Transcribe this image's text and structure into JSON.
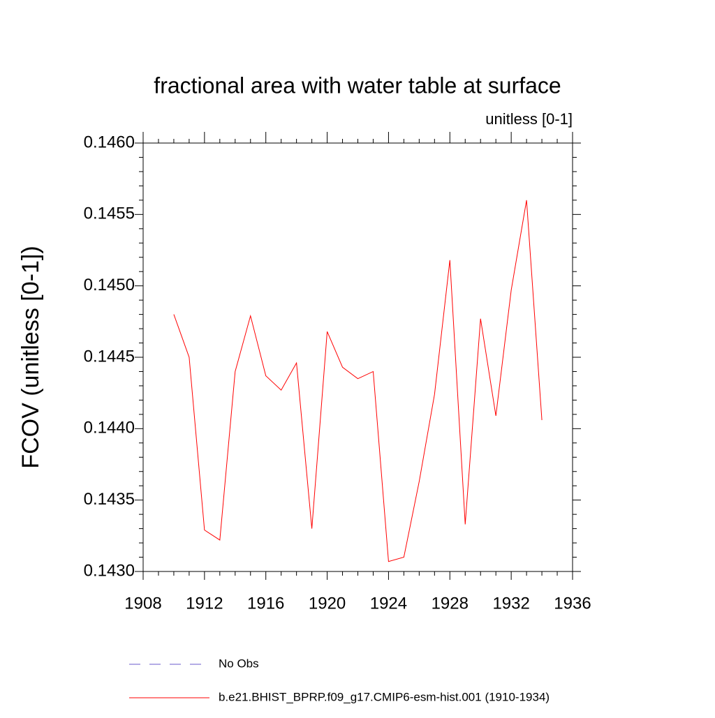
{
  "chart_data": {
    "type": "line",
    "title": "fractional area with water table at surface",
    "subtitle": "unitless [0-1]",
    "y_label": "FCOV  (unitless [0-1])",
    "x": [
      1910,
      1911,
      1912,
      1913,
      1914,
      1915,
      1916,
      1917,
      1918,
      1919,
      1920,
      1921,
      1922,
      1923,
      1924,
      1925,
      1926,
      1927,
      1928,
      1929,
      1930,
      1931,
      1932,
      1933,
      1934
    ],
    "series": [
      {
        "name": "b.e21.BHIST_BPRP.f09_g17.CMIP6-esm-hist.001 (1910-1934)",
        "color": "#ff0000",
        "values": [
          0.1448,
          0.1445,
          0.14329,
          0.14322,
          0.1444,
          0.14479,
          0.14437,
          0.14427,
          0.14446,
          0.1433,
          0.14468,
          0.14443,
          0.14435,
          0.1444,
          0.14307,
          0.1431,
          0.14363,
          0.14424,
          0.14518,
          0.14333,
          0.14477,
          0.14409,
          0.14497,
          0.1456,
          0.14406
        ]
      }
    ],
    "extra_legend": [
      {
        "name": "No Obs",
        "color": "#6a5acd",
        "dash": true
      }
    ],
    "xlim": [
      1908,
      1936
    ],
    "xticks": [
      1908,
      1912,
      1916,
      1920,
      1924,
      1928,
      1932,
      1936
    ],
    "ylim": [
      0.143,
      0.146
    ],
    "yticks": [
      {
        "value": 0.143,
        "label": "0.1430"
      },
      {
        "value": 0.1435,
        "label": "0.1435"
      },
      {
        "value": 0.144,
        "label": "0.1440"
      },
      {
        "value": 0.1445,
        "label": "0.1445"
      },
      {
        "value": 0.145,
        "label": "0.1450"
      },
      {
        "value": 0.1455,
        "label": "0.1455"
      },
      {
        "value": 0.146,
        "label": "0.1460"
      }
    ],
    "grid": false
  }
}
